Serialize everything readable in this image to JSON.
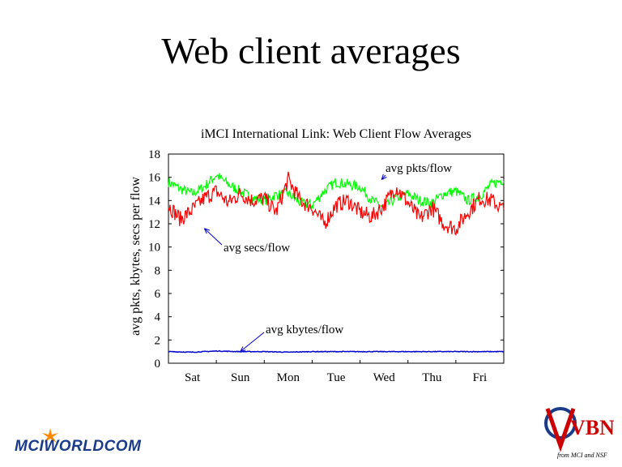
{
  "slide": {
    "title": "Web client averages"
  },
  "logos": {
    "left": "MCIWORLDCOM",
    "right_main": "VBNS",
    "right_sub": "from MCI and NSF"
  },
  "colors": {
    "pkts": "#00ff00",
    "secs": "#ff0000",
    "kbytes": "#0000cc",
    "mci_blue": "#1a3a8a",
    "mci_orange": "#ff8800",
    "vbns_red": "#cc0000"
  },
  "chart_data": {
    "type": "line",
    "title": "iMCI International Link: Web Client Flow Averages",
    "xlabel": "",
    "ylabel": "avg pkts, kbytes, secs per flow",
    "ylim": [
      0,
      18
    ],
    "yticks": [
      "0",
      "2",
      "4",
      "6",
      "8",
      "10",
      "12",
      "14",
      "16",
      "18"
    ],
    "categories": [
      "Sat",
      "Sun",
      "Mon",
      "Tue",
      "Wed",
      "Thu",
      "Fri"
    ],
    "series": [
      {
        "key": "pkts",
        "name": "avg pkts/flow",
        "x": [
          0,
          0.25,
          0.5,
          0.75,
          1,
          1.25,
          1.5,
          1.75,
          2,
          2.25,
          2.5,
          2.75,
          3,
          3.25,
          3.5,
          3.75,
          4,
          4.25,
          4.5,
          4.75,
          5,
          5.25,
          5.5,
          5.75,
          6,
          6.25,
          6.5,
          6.75,
          7
        ],
        "values": [
          15.6,
          15.0,
          14.6,
          15.2,
          16.2,
          15.4,
          14.8,
          14.2,
          14.0,
          14.5,
          14.6,
          13.8,
          13.6,
          14.8,
          15.6,
          15.4,
          15.2,
          14.0,
          13.4,
          14.2,
          14.6,
          14.0,
          13.8,
          14.6,
          14.8,
          14.0,
          14.4,
          15.4,
          15.8
        ]
      },
      {
        "key": "secs",
        "name": "avg secs/flow",
        "x": [
          0,
          0.25,
          0.5,
          0.75,
          1,
          1.25,
          1.5,
          1.75,
          2,
          2.25,
          2.5,
          2.75,
          3,
          3.25,
          3.5,
          3.75,
          4,
          4.25,
          4.5,
          4.75,
          5,
          5.25,
          5.5,
          5.75,
          6,
          6.25,
          6.5,
          6.75,
          7
        ],
        "values": [
          13.6,
          12.4,
          13.2,
          14.2,
          14.8,
          13.8,
          14.6,
          14.0,
          14.2,
          13.0,
          15.8,
          14.0,
          13.4,
          12.0,
          13.6,
          14.0,
          13.0,
          12.6,
          13.6,
          15.2,
          13.8,
          12.4,
          13.4,
          12.0,
          11.6,
          13.0,
          14.2,
          14.0,
          13.2
        ]
      },
      {
        "key": "kbytes",
        "name": "avg kbytes/flow",
        "x": [
          0,
          0.5,
          1,
          1.5,
          2,
          2.5,
          3,
          3.5,
          4,
          4.5,
          5,
          5.5,
          6,
          6.5,
          7
        ],
        "values": [
          1.0,
          0.95,
          1.05,
          1.0,
          1.0,
          0.95,
          1.0,
          1.0,
          1.0,
          1.0,
          1.0,
          1.0,
          1.0,
          1.0,
          1.0
        ]
      }
    ],
    "grid": false,
    "annotations": [
      {
        "text": "avg pkts/flow",
        "series": "pkts",
        "x": 4.45,
        "y": 15.8
      },
      {
        "text": "avg secs/flow",
        "series": "secs",
        "x": 0.75,
        "y": 11.6
      },
      {
        "text": "avg kbytes/flow",
        "series": "kbytes",
        "x": 1.5,
        "y": 1.0
      }
    ]
  }
}
